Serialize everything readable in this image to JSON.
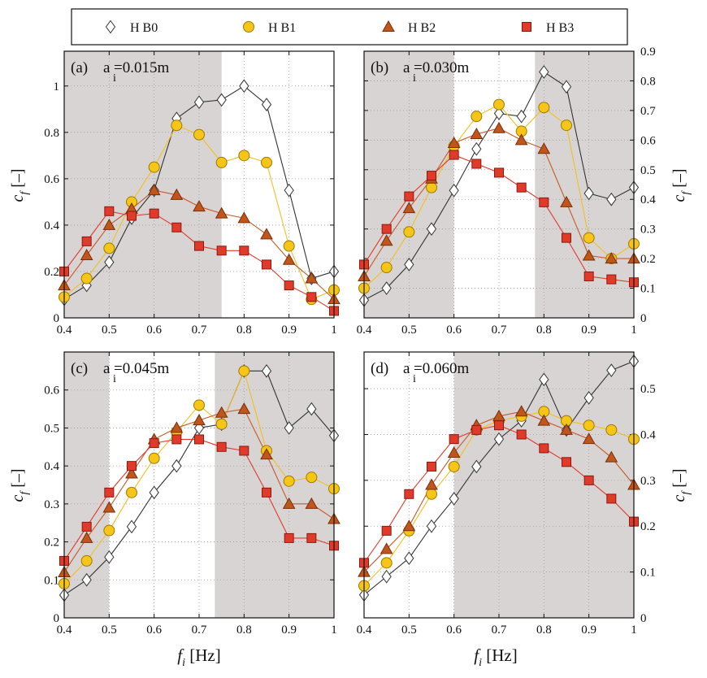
{
  "legend": {
    "items": [
      {
        "label": "H B0",
        "marker": "diamond",
        "fill": "#ffffff",
        "stroke": "#333333"
      },
      {
        "label": "H B1",
        "marker": "circle",
        "fill": "#f5c518",
        "stroke": "#a07a00"
      },
      {
        "label": "H B2",
        "marker": "triangle",
        "fill": "#c0561c",
        "stroke": "#7a2e0a"
      },
      {
        "label": "H B3",
        "marker": "square",
        "fill": "#e03a2a",
        "stroke": "#8a1a10"
      }
    ],
    "line_colors": [
      "#333333",
      "#f0c020",
      "#c45a2a",
      "#e03a2a"
    ]
  },
  "axis_labels": {
    "x_main": "f",
    "x_sub": "i",
    "x_unit": " [Hz]",
    "y_main": "c",
    "y_sub": "f",
    "y_unit": " [–]"
  },
  "chart_data": [
    {
      "type": "line",
      "panel_label": "(a)",
      "title_prefix": "a",
      "title_sub": "i",
      "title_value": "=0.015m",
      "yaxis_side": "left",
      "xlim": [
        0.4,
        1.0
      ],
      "ylim": [
        0,
        1.15
      ],
      "xticks": [
        0.4,
        0.5,
        0.6,
        0.7,
        0.8,
        0.9,
        1.0
      ],
      "xtick_labels": [
        "0.4",
        "0.5",
        "0.6",
        "0.7",
        "0.8",
        "0.9",
        "1"
      ],
      "yticks": [
        0,
        0.2,
        0.4,
        0.6,
        0.8,
        1.0
      ],
      "ytick_labels": [
        "0",
        "0.2",
        "0.4",
        "0.6",
        "0.8",
        "1"
      ],
      "shaded": [
        [
          0.4,
          0.75
        ]
      ],
      "x": [
        0.4,
        0.45,
        0.5,
        0.55,
        0.6,
        0.65,
        0.7,
        0.75,
        0.8,
        0.85,
        0.9,
        0.95,
        1.0
      ],
      "series": [
        {
          "name": "H B0",
          "values": [
            0.08,
            0.14,
            0.24,
            0.43,
            0.55,
            0.86,
            0.93,
            0.94,
            1.0,
            0.92,
            0.55,
            0.17,
            0.2
          ]
        },
        {
          "name": "H B1",
          "values": [
            0.09,
            0.17,
            0.3,
            0.5,
            0.65,
            0.83,
            0.79,
            0.67,
            0.7,
            0.67,
            0.31,
            0.08,
            0.12
          ]
        },
        {
          "name": "H B2",
          "values": [
            0.14,
            0.27,
            0.4,
            0.47,
            0.55,
            0.53,
            0.48,
            0.45,
            0.43,
            0.36,
            0.25,
            0.17,
            0.08
          ]
        },
        {
          "name": "H B3",
          "values": [
            0.2,
            0.33,
            0.46,
            0.44,
            0.45,
            0.39,
            0.31,
            0.29,
            0.29,
            0.23,
            0.14,
            0.09,
            0.03
          ]
        }
      ]
    },
    {
      "type": "line",
      "panel_label": "(b)",
      "title_prefix": "a",
      "title_sub": "i",
      "title_value": "=0.030m",
      "yaxis_side": "right",
      "xlim": [
        0.4,
        1.0
      ],
      "ylim": [
        0,
        0.9
      ],
      "xticks": [
        0.4,
        0.5,
        0.6,
        0.7,
        0.8,
        0.9,
        1.0
      ],
      "xtick_labels": [
        "0.4",
        "0.5",
        "0.6",
        "0.7",
        "0.8",
        "0.9",
        "1"
      ],
      "yticks": [
        0,
        0.1,
        0.2,
        0.3,
        0.4,
        0.5,
        0.6,
        0.7,
        0.8,
        0.9
      ],
      "ytick_labels": [
        "0",
        "0.1",
        "0.2",
        "0.3",
        "0.4",
        "0.5",
        "0.6",
        "0.7",
        "0.8",
        "0.9"
      ],
      "shaded": [
        [
          0.4,
          0.6
        ],
        [
          0.78,
          1.0
        ]
      ],
      "x": [
        0.4,
        0.45,
        0.5,
        0.55,
        0.6,
        0.65,
        0.7,
        0.75,
        0.8,
        0.85,
        0.9,
        0.95,
        1.0
      ],
      "series": [
        {
          "name": "H B0",
          "values": [
            0.06,
            0.1,
            0.18,
            0.3,
            0.43,
            0.57,
            0.69,
            0.68,
            0.83,
            0.78,
            0.42,
            0.4,
            0.44
          ]
        },
        {
          "name": "H B1",
          "values": [
            0.1,
            0.17,
            0.29,
            0.44,
            0.58,
            0.68,
            0.72,
            0.63,
            0.71,
            0.65,
            0.27,
            0.2,
            0.25
          ]
        },
        {
          "name": "H B2",
          "values": [
            0.14,
            0.26,
            0.37,
            0.47,
            0.59,
            0.62,
            0.64,
            0.6,
            0.57,
            0.39,
            0.21,
            0.2,
            0.2
          ]
        },
        {
          "name": "H B3",
          "values": [
            0.18,
            0.3,
            0.41,
            0.48,
            0.55,
            0.52,
            0.49,
            0.44,
            0.39,
            0.27,
            0.14,
            0.13,
            0.12
          ]
        }
      ]
    },
    {
      "type": "line",
      "panel_label": "(c)",
      "title_prefix": "a",
      "title_sub": "i",
      "title_value": "=0.045m",
      "yaxis_side": "left",
      "xlim": [
        0.4,
        1.0
      ],
      "ylim": [
        0,
        0.7
      ],
      "xticks": [
        0.4,
        0.5,
        0.6,
        0.7,
        0.8,
        0.9,
        1.0
      ],
      "xtick_labels": [
        "0.4",
        "0.5",
        "0.6",
        "0.7",
        "0.8",
        "0.9",
        "1"
      ],
      "yticks": [
        0,
        0.1,
        0.2,
        0.3,
        0.4,
        0.5,
        0.6
      ],
      "ytick_labels": [
        "0",
        "0.1",
        "0.2",
        "0.3",
        "0.4",
        "0.5",
        "0.6"
      ],
      "shaded": [
        [
          0.4,
          0.5
        ],
        [
          0.735,
          1.0
        ]
      ],
      "x": [
        0.4,
        0.45,
        0.5,
        0.55,
        0.6,
        0.65,
        0.7,
        0.75,
        0.8,
        0.85,
        0.9,
        0.95,
        1.0
      ],
      "series": [
        {
          "name": "H B0",
          "values": [
            0.06,
            0.1,
            0.16,
            0.24,
            0.33,
            0.4,
            0.5,
            0.51,
            0.65,
            0.65,
            0.5,
            0.55,
            0.48
          ]
        },
        {
          "name": "H B1",
          "values": [
            0.09,
            0.15,
            0.23,
            0.33,
            0.42,
            0.49,
            0.56,
            0.51,
            0.65,
            0.44,
            0.36,
            0.37,
            0.34
          ]
        },
        {
          "name": "H B2",
          "values": [
            0.12,
            0.21,
            0.29,
            0.38,
            0.47,
            0.5,
            0.52,
            0.54,
            0.55,
            0.43,
            0.3,
            0.3,
            0.26
          ]
        },
        {
          "name": "H B3",
          "values": [
            0.15,
            0.24,
            0.33,
            0.4,
            0.46,
            0.47,
            0.47,
            0.45,
            0.44,
            0.33,
            0.21,
            0.21,
            0.19
          ]
        }
      ]
    },
    {
      "type": "line",
      "panel_label": "(d)",
      "title_prefix": "a",
      "title_sub": "i",
      "title_value": "=0.060m",
      "yaxis_side": "right",
      "xlim": [
        0.4,
        1.0
      ],
      "ylim": [
        0,
        0.58
      ],
      "xticks": [
        0.4,
        0.5,
        0.6,
        0.7,
        0.8,
        0.9,
        1.0
      ],
      "xtick_labels": [
        "0.4",
        "0.5",
        "0.6",
        "0.7",
        "0.8",
        "0.9",
        "1"
      ],
      "yticks": [
        0,
        0.1,
        0.2,
        0.3,
        0.4,
        0.5
      ],
      "ytick_labels": [
        "0",
        "0.1",
        "0.2",
        "0.3",
        "0.4",
        "0.5"
      ],
      "shaded": [
        [
          0.6,
          1.0
        ]
      ],
      "x": [
        0.4,
        0.45,
        0.5,
        0.55,
        0.6,
        0.65,
        0.7,
        0.75,
        0.8,
        0.85,
        0.9,
        0.95,
        1.0
      ],
      "series": [
        {
          "name": "H B0",
          "values": [
            0.05,
            0.09,
            0.13,
            0.2,
            0.26,
            0.33,
            0.39,
            0.43,
            0.52,
            0.41,
            0.48,
            0.54,
            0.56
          ]
        },
        {
          "name": "H B1",
          "values": [
            0.07,
            0.12,
            0.19,
            0.27,
            0.33,
            0.41,
            0.43,
            0.44,
            0.45,
            0.43,
            0.42,
            0.41,
            0.39
          ]
        },
        {
          "name": "H B2",
          "values": [
            0.1,
            0.15,
            0.2,
            0.29,
            0.36,
            0.42,
            0.44,
            0.45,
            0.43,
            0.41,
            0.39,
            0.35,
            0.29
          ]
        },
        {
          "name": "H B3",
          "values": [
            0.12,
            0.19,
            0.27,
            0.33,
            0.39,
            0.41,
            0.42,
            0.4,
            0.37,
            0.34,
            0.3,
            0.26,
            0.21
          ]
        }
      ]
    }
  ]
}
